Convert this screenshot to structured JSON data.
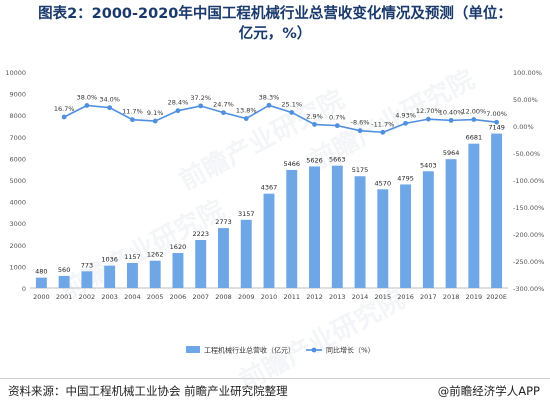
{
  "title_lines": [
    "图表2：2000-2020年中国工程机械行业总营收变化情况及预测（单位：",
    "亿元，%）"
  ],
  "source": "资料来源：中国工程机械工业协会 前瞻产业研究院整理",
  "brand": "@前瞻经济学人APP",
  "watermark": "前瞻产业研究院",
  "chart_data": {
    "type": "bar+line",
    "categories": [
      "2000",
      "2001",
      "2002",
      "2003",
      "2004",
      "2005",
      "2006",
      "2007",
      "2008",
      "2009",
      "2010",
      "2011",
      "2012",
      "2013",
      "2014",
      "2015",
      "2016",
      "2017",
      "2018",
      "2019",
      "2020E"
    ],
    "series": [
      {
        "name": "工程机械行业总营收（亿元）",
        "type": "bar",
        "axis": "left",
        "color": "#6ea6e6",
        "values": [
          480,
          560,
          773,
          1036,
          1157,
          1262,
          1620,
          2223,
          2773,
          3157,
          4367,
          5466,
          5626,
          5663,
          5175,
          4570,
          4795,
          5403,
          5964,
          6681,
          7149
        ]
      },
      {
        "name": "同比增长（%）",
        "type": "line",
        "axis": "right",
        "color": "#4f8fe0",
        "values": [
          null,
          16.7,
          38.0,
          34.0,
          11.7,
          9.1,
          28.4,
          37.2,
          24.7,
          13.8,
          38.3,
          25.1,
          2.9,
          0.7,
          -8.6,
          -11.7,
          4.93,
          12.7,
          10.4,
          12.0,
          7.0
        ],
        "labels": [
          "",
          "16.7%",
          "38.0%",
          "34.0%",
          "11.7%",
          "9.1%",
          "28.4%",
          "37.2%",
          "24.7%",
          "13.8%",
          "38.3%",
          "25.1%",
          "2.9%",
          "0.7%",
          "-8.6%",
          "-11.7%",
          "4.93%",
          "12.70%",
          "10.40%",
          "12.00%",
          "7.00%"
        ]
      }
    ],
    "left_axis": {
      "min": 0,
      "max": 10000,
      "step": 1000
    },
    "right_axis": {
      "min": -300,
      "max": 100,
      "step": 50
    },
    "left_ticks": [
      "0",
      "1000",
      "2000",
      "3000",
      "4000",
      "5000",
      "6000",
      "7000",
      "8000",
      "9000",
      "10000"
    ],
    "right_ticks": [
      "-300.00%",
      "-250.00%",
      "-200.00%",
      "-150.00%",
      "-100.00%",
      "-50.00%",
      "0.00%",
      "50.00%",
      "100.00%"
    ],
    "legend_position": "bottom",
    "grid": false
  }
}
